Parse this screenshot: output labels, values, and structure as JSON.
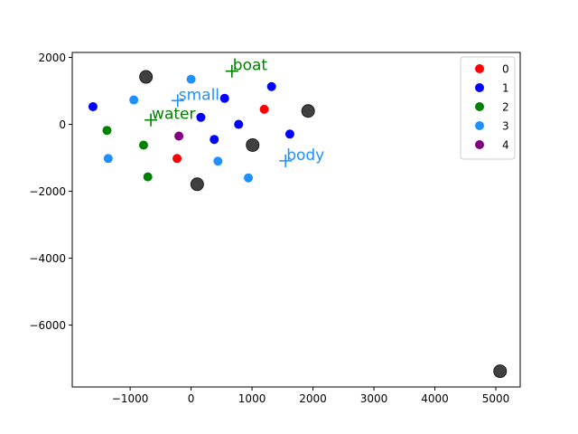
{
  "chart_data": {
    "type": "scatter",
    "title": "",
    "xlabel": "",
    "ylabel": "",
    "xlim": [
      -1950,
      5400
    ],
    "ylim": [
      -7850,
      2150
    ],
    "x_ticks": [
      -1000,
      0,
      1000,
      2000,
      3000,
      4000,
      5000
    ],
    "x_tick_labels": [
      "−1000",
      "0",
      "1000",
      "2000",
      "3000",
      "4000",
      "5000"
    ],
    "y_ticks": [
      2000,
      0,
      -2000,
      -4000,
      -6000
    ],
    "y_tick_labels": [
      "2000",
      "0",
      "−2000",
      "−4000",
      "−6000"
    ],
    "grid": false,
    "legend_position": "top-right",
    "series": [
      {
        "name": "0",
        "color": "#ff0000",
        "points": [
          [
            1200,
            450
          ],
          [
            -230,
            -1020
          ]
        ]
      },
      {
        "name": "1",
        "color": "#0000ff",
        "points": [
          [
            -1610,
            530
          ],
          [
            1320,
            1130
          ],
          [
            550,
            780
          ],
          [
            160,
            210
          ],
          [
            780,
            0
          ],
          [
            380,
            -450
          ],
          [
            1620,
            -290
          ]
        ]
      },
      {
        "name": "2",
        "color": "#008000",
        "points": [
          [
            -1380,
            -180
          ],
          [
            -780,
            -620
          ],
          [
            -710,
            -1570
          ]
        ]
      },
      {
        "name": "3",
        "color": "#1e90ff",
        "points": [
          [
            -940,
            730
          ],
          [
            0,
            1350
          ],
          [
            -1360,
            -1020
          ],
          [
            440,
            -1100
          ],
          [
            940,
            -1600
          ]
        ]
      },
      {
        "name": "4",
        "color": "#800080",
        "points": [
          [
            -200,
            -350
          ]
        ]
      }
    ],
    "centers": {
      "color": "#404040",
      "points": [
        [
          -740,
          1420
        ],
        [
          1920,
          400
        ],
        [
          1010,
          -620
        ],
        [
          100,
          -1790
        ],
        [
          5070,
          -7380
        ]
      ]
    },
    "annotations": [
      {
        "text": "boat",
        "x": 670,
        "y": 1590,
        "color": "#008000"
      },
      {
        "text": "small",
        "x": -220,
        "y": 710,
        "color": "#1e90ff"
      },
      {
        "text": "water",
        "x": -660,
        "y": 130,
        "color": "#008000"
      },
      {
        "text": "body",
        "x": 1550,
        "y": -1090,
        "color": "#1e90ff"
      }
    ]
  }
}
